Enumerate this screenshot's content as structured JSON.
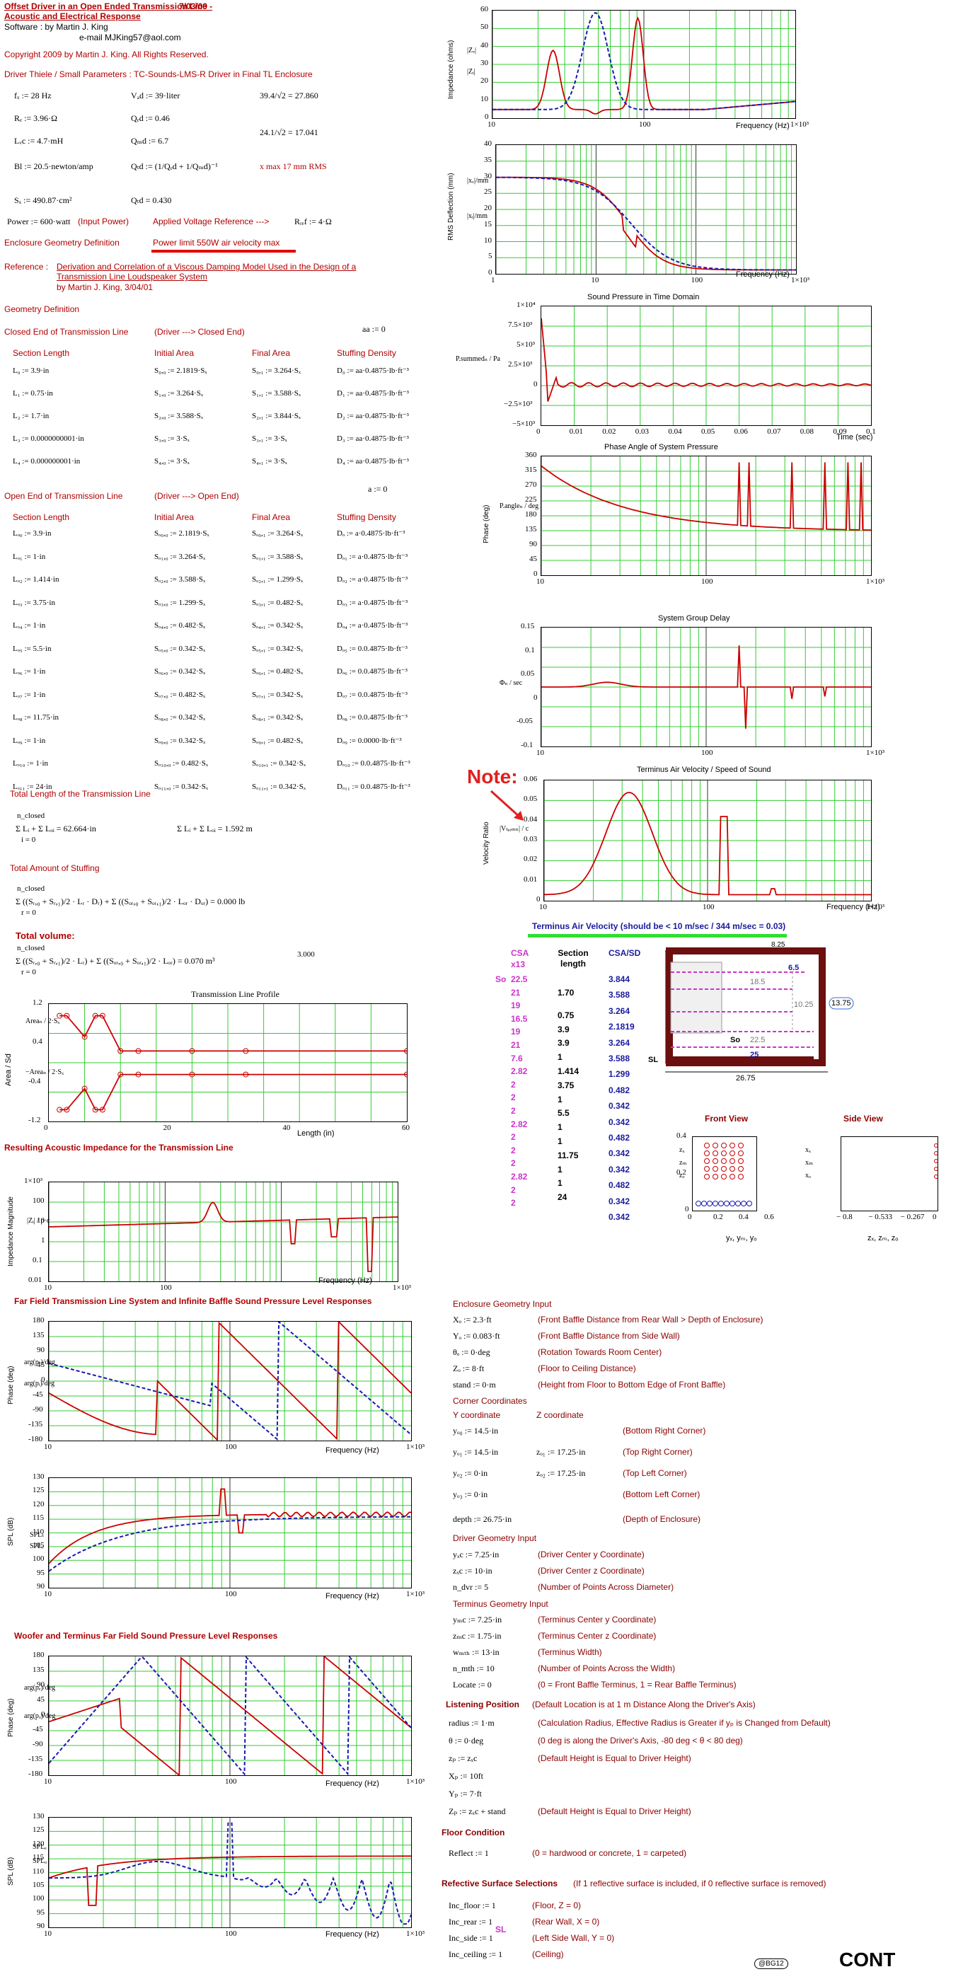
{
  "header": {
    "title1": "Offset Driver in an Open Ended Transmission Line -",
    "title2": "Acoustic and Electrical Response",
    "date": "7/03/09",
    "software": "Software   :   by      Martin J. King",
    "email": "e-mail    MJKing57@aol.com",
    "copyright": "Copyright 2009 by Martin J. King. All Rights Reserved.",
    "driver_params": "Driver Thiele / Small Parameters : TC-Sounds-LMS-R  Driver in Final TL Enclosure"
  },
  "params": {
    "fd": "fₓ := 28 Hz",
    "vad": "Vₐd := 39·liter",
    "calc1": "39.4/√2 = 27.860",
    "re": "Rₑ := 3.96·Ω",
    "qed": "Qₑd := 0.46",
    "lvc": "Lᵥc := 4.7·mH",
    "qmd": "Qₘd := 6.7",
    "calc2": "24.1/√2 = 17.041",
    "bl": "Bl := 20.5·newton/amp",
    "qtd": "Qₜd := (1/Qₑd + 1/Qₘd)⁻¹",
    "xmax": "x max 17 mm RMS",
    "sd": "Sₓ := 490.87·cm²",
    "qtd_val": "Qₜd = 0.430",
    "power": "Power := 600·watt",
    "input_power": "(Input Power)",
    "applied": "Applied Voltage Reference --->",
    "ref": "Rᵣₑf := 4·Ω",
    "enc_geom": "Enclosure Geometry Definition",
    "power_limit": "Power limit  550W air velocity max",
    "reference_label": "Reference :",
    "reference1": "Derivation and Correlation of a Viscous Damping Model Used in the Design of a",
    "reference2": "Transmission Line Loudspeaker System",
    "reference3": "by        Martin J. King,  3/04/01"
  },
  "geometry": {
    "title": "Geometry Definition",
    "aa": "aa := 0",
    "closed_title": "Closed End of Transmission Line",
    "closed_dir": "(Driver ---> Closed End)",
    "headers": [
      "Section Length",
      "Initial Area",
      "Final Area",
      "Stuffing Density"
    ],
    "closed_rows": [
      [
        "L₀ := 3.9·in",
        "S₀,₀ := 2.1819·Sₓ",
        "S₀,₁ := 3.264·Sₓ",
        "D₀ := aa·0.4875·lb·ft⁻³"
      ],
      [
        "L₁ := 0.75·in",
        "S₁,₀ := 3.264·Sₓ",
        "S₁,₁ := 3.588·Sₓ",
        "D₁ := aa·0.4875·lb·ft⁻³"
      ],
      [
        "L₂ := 1.7·in",
        "S₂,₀ := 3.588·Sₓ",
        "S₂,₁ := 3.844·Sₓ",
        "D₂ := aa·0.4875·lb·ft⁻³"
      ],
      [
        "L₃ := 0.0000000001·in",
        "S₃,₀ := 3·Sₓ",
        "S₃,₁ := 3·Sₓ",
        "D₃ := aa·0.4875·lb·ft⁻³"
      ],
      [
        "L₄ := 0.000000001·in",
        "S₄,₀ := 3·Sₓ",
        "S₄,₁ := 3·Sₓ",
        "D₄ := aa·0.4875·lb·ft⁻³"
      ]
    ],
    "a": "a := 0",
    "open_title": "Open End of Transmission Line",
    "open_dir": "(Driver ---> Open End)",
    "open_rows": [
      [
        "Lₒ₀ := 3.9·in",
        "Sₒ₀,₀ := 2.1819·Sₓ",
        "Sₒ₀,₁ := 3.264·Sₓ",
        "Dₒ := a·0.4875·lb·ft⁻³"
      ],
      [
        "Lₒ₁ := 1·in",
        "Sₒ₁,₀ := 3.264·Sₓ",
        "Sₒ₁,₁ := 3.588·Sₓ",
        "Dₒ₁ := a·0.4875·lb·ft⁻³"
      ],
      [
        "Lₒ₂ := 1.414·in",
        "Sₒ₂,₀ := 3.588·Sₓ",
        "Sₒ₂,₁ := 1.299·Sₓ",
        "Dₒ₂ := a·0.4875·lb·ft⁻³"
      ],
      [
        "Lₒ₃ := 3.75·in",
        "Sₒ₃,₀ := 1.299·Sₓ",
        "Sₒ₃,₁ := 0.482·Sₓ",
        "Dₒ₃ := a·0.4875·lb·ft⁻³"
      ],
      [
        "Lₒ₄ := 1·in",
        "Sₒ₄,₀ := 0.482·Sₓ",
        "Sₒ₄,₁ := 0.342·Sₓ",
        "Dₒ₄ := a·0.4875·lb·ft⁻³"
      ],
      [
        "Lₒ₅ := 5.5·in",
        "Sₒ₅,₀ := 0.342·Sₓ",
        "Sₒ₅,₁ := 0.342·Sₓ",
        "Dₒ₅ := 0.0.4875·lb·ft⁻³"
      ],
      [
        "Lₒ₆ := 1·in",
        "Sₒ₆,₀ := 0.342·Sₓ",
        "Sₒ₆,₁ := 0.482·Sₓ",
        "Dₒ₆ := 0.0.4875·lb·ft⁻³"
      ],
      [
        "Lₒ₇ := 1·in",
        "Sₒ₇,₀ := 0.482·Sₓ",
        "Sₒ₇,₁ := 0.342·Sₓ",
        "Dₒ₇ := 0.0.4875·lb·ft⁻³"
      ],
      [
        "Lₒ₈ := 11.75·in",
        "Sₒ₈,₀ := 0.342·Sₓ",
        "Sₒ₈,₁ := 0.342·Sₓ",
        "Dₒ₈ := 0.0.4875·lb·ft⁻³"
      ],
      [
        "Lₒ₉ := 1·in",
        "Sₒ₉,₀ := 0.342·Sₓ",
        "Sₒ₉,₁ := 0.482·Sₓ",
        "Dₒ₉ := 0.0000·lb·ft⁻³"
      ],
      [
        "Lₒ₁₀ := 1·in",
        "Sₒ₁₀,₀ := 0.482·Sₓ",
        "Sₒ₁₀,₁ := 0.342·Sₓ",
        "Dₒ₁₀ := 0.0.4875·lb·ft⁻³"
      ],
      [
        "Lₒ₁₁ := 24·in",
        "Sₒ₁₁,₀ := 0.342·Sₓ",
        "Sₒ₁₁,₁ := 0.342·Sₓ",
        "Dₒ₁₁ := 0.0.4875·lb·ft⁻³"
      ]
    ]
  },
  "totals": {
    "length_title": "Total Length of the Transmission Line",
    "length1": "Σ Lᵢ + Σ Lₒᵢ = 62.664·in",
    "length2": "Σ Lᵢ + Σ Lₒᵢ = 1.592 m",
    "stuff_title": "Total Amount of Stuffing",
    "stuff": "Σ ((Sᵣ,₀ + Sᵣ,₁)/2 · Lᵣ · Dᵣ) + Σ ((Sₒᵣ,₀ + Sₒᵣ,₁)/2 · Lₒᵣ · Dₒᵣ) = 0.000 lb",
    "volume_title": "Total volume:",
    "volume": "Σ ((Sᵣ,₀ + Sᵣ,₁)/2 · Lᵣ) + Σ ((Sₒᵣ,₀ + Sₒᵣ,₁)/2 · Lₒᵣ) = 0.070 m³",
    "volume_exp": "3.000",
    "sum_n_closed": "n_closed",
    "sum_n_open": "n_open",
    "sum_i0": "i = 0",
    "sum_r0": "r = 0"
  },
  "plots": {
    "impedance": {
      "ylabel": "Impedance (ohms)",
      "xlabel": "Frequency (Hz)",
      "legend1": "|Zᵥ|",
      "legend2": "|Zᵢ|",
      "yticks": [
        "60",
        "50",
        "40",
        "30",
        "20",
        "10",
        "0"
      ],
      "xticks": [
        "10",
        "100",
        "1×10³"
      ]
    },
    "rms": {
      "ylabel": "RMS Deflection (mm)",
      "xlabel": "Frequency (Hz)",
      "legend1": "|xᵥ|/mm",
      "legend2": "|xᵢ|/mm",
      "yticks": [
        "40",
        "35",
        "30",
        "25",
        "20",
        "15",
        "10",
        "5",
        "0"
      ],
      "xticks": [
        "1",
        "10",
        "100",
        "1×10³"
      ]
    },
    "pressure": {
      "title": "Sound Pressure in Time Domain",
      "xlabel": "Time (sec)",
      "legend": "P.summedₙ / Pa",
      "yticks": [
        "1×10⁴",
        "7.5×10³",
        "5×10³",
        "2.5×10³",
        "0",
        "−2.5×10³",
        "−5×10³"
      ],
      "xticks": [
        "0",
        "0.01",
        "0.02",
        "0.03",
        "0.04",
        "0.05",
        "0.06",
        "0.07",
        "0.08",
        "0.09",
        "0.1"
      ]
    },
    "phase": {
      "title": "Phase Angle of System Pressure",
      "ylabel": "Phase (deg)",
      "legend": "P.angleₙ / deg",
      "yticks": [
        "360",
        "315",
        "270",
        "225",
        "180",
        "135",
        "90",
        "45",
        "0"
      ],
      "xticks": [
        "10",
        "100",
        "1×10³"
      ]
    },
    "delay": {
      "title": "System Group Delay",
      "legend": "Φₙ / sec",
      "yticks": [
        "0.15",
        "0.1",
        "0.05",
        "0",
        "-0.05",
        "-0.1"
      ],
      "xticks": [
        "10",
        "100",
        "1×10³"
      ]
    },
    "velocity": {
      "title": "Terminus Air Velocity / Speed of Sound",
      "ylabel": "Velocity Ratio",
      "xlabel": "Frequency (Hz)",
      "legend": "|Vₜₑᵣₘₙ| / c",
      "yticks": [
        "0.06",
        "0.05",
        "0.04",
        "0.03",
        "0.02",
        "0.01",
        "0"
      ],
      "xticks": [
        "10",
        "100",
        "1×10³"
      ]
    },
    "note": "Note:",
    "terminus_caption": "Terminus Air Velocity (should be < 10 m/sec / 344 m/sec = 0.03)",
    "profile": {
      "title": "Transmission Line Profile",
      "ylabel": "Area / Sd",
      "xlabel": "Length (in)",
      "legend1": "Areaₙ / 2·Sₓ",
      "legend2": "−Areaₙ / 2·Sₓ",
      "yticks": [
        "1.2",
        "0.4",
        "-0.4",
        "-1.2"
      ],
      "xticks": [
        "0",
        "20",
        "40",
        "60"
      ]
    },
    "acoustic_title": "Resulting Acoustic Impedance for the Transmission Line",
    "acoustic": {
      "ylabel": "Impedance Magnitude",
      "xlabel": "Frequency (Hz)",
      "legend": "|Zᵢ| / ρ·c",
      "yticks": [
        "1×10³",
        "100",
        "10",
        "1",
        "0.1",
        "0.01"
      ],
      "xticks": [
        "10",
        "100",
        "1×10³"
      ]
    },
    "farfield_title": "Far Field Transmission Line System and Infinite Baffle Sound Pressure Level Responses",
    "ff_phase": {
      "ylabel": "Phase (deg)",
      "xlabel": "Frequency (Hz)",
      "legend1": "arg(pₜ)/deg",
      "legend2": "arg(pᵢ)/deg",
      "yticks": [
        "180",
        "135",
        "90",
        "45",
        "0",
        "-45",
        "-90",
        "-135",
        "-180"
      ],
      "xticks": [
        "10",
        "100",
        "1×10³"
      ]
    },
    "ff_spl": {
      "ylabel": "SPL (dB)",
      "xlabel": "Frequency (Hz)",
      "legend1": "SPLₜ",
      "legend2": "SPLᵢ",
      "yticks": [
        "130",
        "125",
        "120",
        "115",
        "110",
        "105",
        "100",
        "95",
        "90"
      ],
      "xticks": [
        "10",
        "100",
        "1×10³"
      ]
    },
    "woofer_title": "Woofer and Terminus Far Field Sound Pressure Level Responses",
    "w_phase": {
      "ylabel": "Phase (deg)",
      "xlabel": "Frequency (Hz)",
      "legend1": "arg(pₑ)/deg",
      "legend2": "arg(pₒ)/deg",
      "yticks": [
        "180",
        "135",
        "90",
        "45",
        "0",
        "-45",
        "-90",
        "-135",
        "-180"
      ],
      "xticks": [
        "10",
        "100",
        "1×10³"
      ]
    },
    "w_spl": {
      "ylabel": "SPL (dB)",
      "xlabel": "Frequency (Hz)",
      "legend1": "SPLₑ",
      "legend2": "SPLₒ",
      "yticks": [
        "130",
        "125",
        "120",
        "115",
        "110",
        "105",
        "100",
        "95",
        "90"
      ],
      "xticks": [
        "10",
        "100",
        "1×10³"
      ]
    }
  },
  "csa_table": {
    "csa_header": "CSA",
    "x13": "x13",
    "section_header": "Section length",
    "csasd_header": "CSA/SD",
    "so": "So",
    "sl": "SL",
    "csa": [
      "22.5",
      "21",
      "19",
      "16.5",
      "19",
      "21",
      "7.6",
      "2.82",
      "2",
      "2",
      "2",
      "2.82",
      "2",
      "2",
      "2",
      "2.82",
      "2",
      "2"
    ],
    "section": [
      "1.70",
      "0.75",
      "3.9",
      "3.9",
      "1",
      "1.414",
      "3.75",
      "1",
      "5.5",
      "1",
      "1",
      "11.75",
      "1",
      "1",
      "24"
    ],
    "csasd": [
      "3.844",
      "3.588",
      "3.264",
      "2.1819",
      "3.264",
      "3.588",
      "1.299",
      "0.482",
      "0.342",
      "0.342",
      "0.482",
      "0.342",
      "0.342",
      "0.482",
      "0.342",
      "0.342"
    ]
  },
  "enclosure_drawing": {
    "dim1": "8.25",
    "dim2": "6.5",
    "dim3": "18.5",
    "dim4": "10.25",
    "dim5": "13.75",
    "dim6": "22.5",
    "dim7": "25",
    "dim8": "26.75",
    "so": "So",
    "sl": "SL"
  },
  "views": {
    "front_title": "Front View",
    "side_title": "Side View",
    "front_xlabel": "yₓ, yₘ, yₒ",
    "side_xlabel": "zₓ, zₘ, zₒ",
    "front_yticks": [
      "0.4",
      "0.2",
      "0"
    ],
    "front_xticks": [
      "0",
      "0.2",
      "0.4",
      "0.6"
    ],
    "side_xticks": [
      "− 0.8",
      "− 0.533",
      "− 0.267",
      "0"
    ],
    "legend_front": [
      "zₓ",
      "zₘ",
      "zₒ"
    ],
    "legend_side": [
      "xₓ",
      "xₘ",
      "xₒ"
    ]
  },
  "enclosure_inputs": {
    "title": "Enclosure Geometry Input",
    "rows": [
      [
        "Xₒ := 2.3·ft",
        "(Front Baffle Distance from Rear Wall > Depth of Enclosure)"
      ],
      [
        "Yₒ := 0.083·ft",
        "(Front Baffle Distance from Side Wall)"
      ],
      [
        "θₒ := 0·deg",
        "(Rotation Towards Room Center)"
      ],
      [
        "Zₒ := 8·ft",
        "(Floor to Ceiling Distance)"
      ],
      [
        "stand := 0·m",
        "(Height from Floor to Bottom Edge of Front Baffle)"
      ]
    ],
    "corner_title": "Corner Coordinates",
    "y_coord": "Y coordinate",
    "z_coord": "Z coordinate",
    "corners": [
      [
        "yₒ₀ := 14.5·in",
        "",
        "(Bottom Right Corner)"
      ],
      [
        "yₒ₁ := 14.5·in",
        "zₒ₁ := 17.25·in",
        "(Top Right Corner)"
      ],
      [
        "yₒ₂ := 0·in",
        "zₒ₂ := 17.25·in",
        "(Top Left Corner)"
      ],
      [
        "yₒ₃ := 0·in",
        "",
        "(Bottom Left Corner)"
      ]
    ],
    "depth": "depth := 26.75·in",
    "depth_desc": "(Depth of Enclosure)",
    "driver_title": "Driver Geometry Input",
    "driver_rows": [
      [
        "yₓc := 7.25·in",
        "(Driver Center y Coordinate)"
      ],
      [
        "zₓc := 10·in",
        "(Driver Center z Coordinate)"
      ],
      [
        "n_dvr := 5",
        "(Number of Points Across Diameter)"
      ]
    ],
    "terminus_title": "Terminus Geometry Input",
    "terminus_rows": [
      [
        "yₘc := 7.25·in",
        "(Terminus Center y Coordinate)"
      ],
      [
        "zₘc := 1.75·in",
        "(Terminus Center z Coordinate)"
      ],
      [
        "wₘₜₕ := 13·in",
        "(Terminus Width)"
      ],
      [
        "n_mth := 10",
        "(Number of Points Across the Width)"
      ],
      [
        "Locate := 0",
        "(0 = Front Baffle Terminus, 1 = Rear Baffle Terminus)"
      ]
    ],
    "listening_title": "Listening Position",
    "listening_desc": "(Default Location is at 1 m Distance Along the Driver's Axis)",
    "listening_rows": [
      [
        "radius := 1·m",
        "(Calculation Radius, Effective Radius is Greater if yₚ is Changed from Default)"
      ],
      [
        "θ := 0·deg",
        "(0 deg is along the Driver's Axis, -80 deg < θ < 80 deg)"
      ],
      [
        "zₚ := zₓc",
        "(Default Height is Equal to Driver Height)"
      ],
      [
        "Xₚ := 10ft",
        ""
      ],
      [
        "Yₚ := 7·ft",
        ""
      ],
      [
        "Zₚ := zₓc + stand",
        "(Default Height is Equal to Driver Height)"
      ]
    ],
    "floor_title": "Floor Condition",
    "reflect": "Reflect := 1",
    "reflect_desc": "(0 = hardwood or concrete, 1 = carpeted)",
    "surface_title": "Refective Surface Selections",
    "surface_desc": "(If 1 reflective surface is included, if 0 reflective surface is removed)",
    "surface_rows": [
      [
        "Inc_floor := 1",
        "(Floor, Z = 0)"
      ],
      [
        "Inc_rear := 1",
        "(Rear Wall, X = 0)"
      ],
      [
        "Inc_side := 1",
        "(Left Side Wall, Y = 0)"
      ],
      [
        "Inc_ceiling := 1",
        "(Ceiling)"
      ]
    ]
  },
  "footer": {
    "badge": "@BG12",
    "cont": "CONT"
  },
  "colors": {
    "red": "#cc0000",
    "blue": "#1a1ab0",
    "grid": "#33cc33",
    "magenta": "#cc33cc",
    "maroon": "#6b0f0f"
  }
}
